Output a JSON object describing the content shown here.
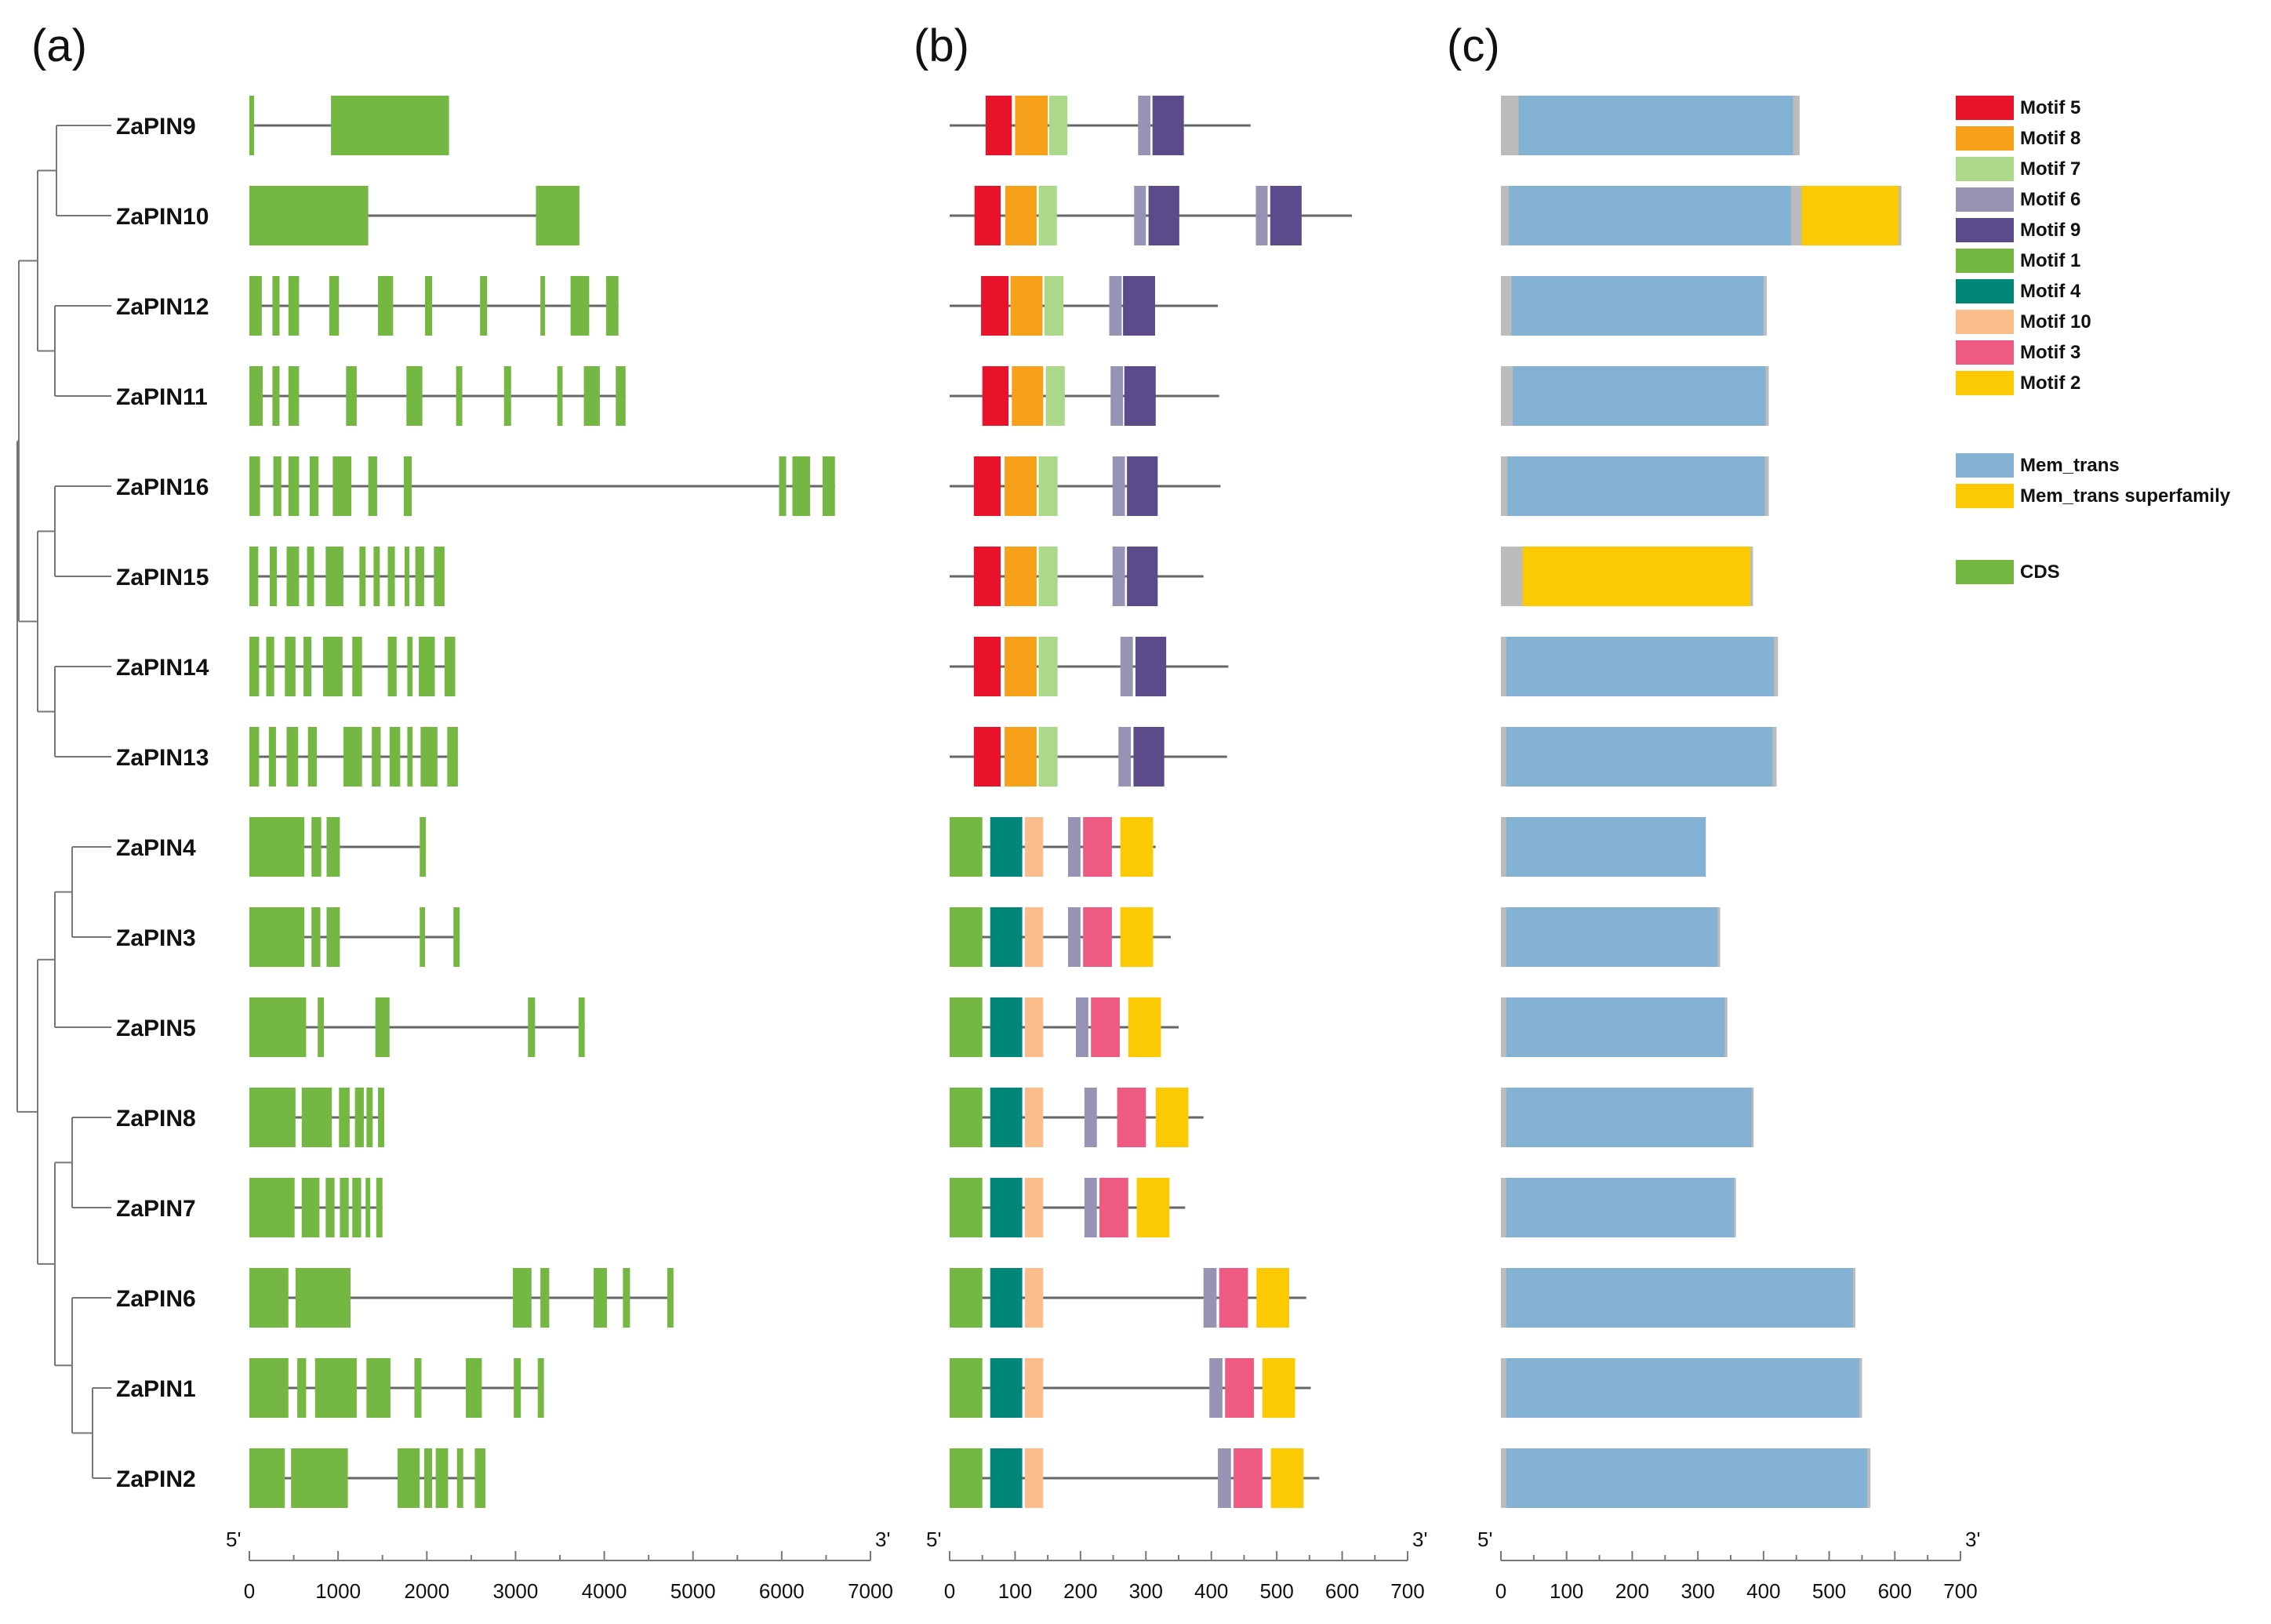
{
  "panels": {
    "a": "(a)",
    "b": "(b)",
    "c": "(c)"
  },
  "genes": [
    "ZaPIN9",
    "ZaPIN10",
    "ZaPIN12",
    "ZaPIN11",
    "ZaPIN16",
    "ZaPIN15",
    "ZaPIN14",
    "ZaPIN13",
    "ZaPIN4",
    "ZaPIN3",
    "ZaPIN5",
    "ZaPIN8",
    "ZaPIN7",
    "ZaPIN6",
    "ZaPIN1",
    "ZaPIN2"
  ],
  "axes": {
    "a": {
      "ticks": [
        "0",
        "1000",
        "2000",
        "3000",
        "4000",
        "5000",
        "6000",
        "7000"
      ],
      "max": 7000,
      "five": "5'",
      "three": "3'"
    },
    "b": {
      "ticks": [
        "0",
        "100",
        "200",
        "300",
        "400",
        "500",
        "600",
        "700"
      ],
      "max": 700,
      "five": "5'",
      "three": "3'"
    },
    "c": {
      "ticks": [
        "0",
        "100",
        "200",
        "300",
        "400",
        "500",
        "600",
        "700"
      ],
      "max": 700,
      "five": "5'",
      "three": "3'"
    }
  },
  "colors": {
    "motif5": "#e8132a",
    "motif8": "#f7a11a",
    "motif7": "#acd889",
    "motif6": "#9793b5",
    "motif9": "#5c4b8b",
    "motif1": "#74b843",
    "motif4": "#00877a",
    "motif10": "#fbbd8b",
    "motif3": "#ef5a82",
    "motif2": "#fcca03",
    "mem": "#84b2d5",
    "memsf": "#fcca03",
    "cds": "#74b843",
    "line": "#666666",
    "grey": "#bcbcbc"
  },
  "legend": [
    {
      "key": "motif5",
      "label": "Motif 5"
    },
    {
      "key": "motif8",
      "label": "Motif 8"
    },
    {
      "key": "motif7",
      "label": "Motif 7"
    },
    {
      "key": "motif6",
      "label": "Motif 6"
    },
    {
      "key": "motif9",
      "label": "Motif 9"
    },
    {
      "key": "motif1",
      "label": "Motif 1"
    },
    {
      "key": "motif4",
      "label": "Motif 4"
    },
    {
      "key": "motif10",
      "label": "Motif 10"
    },
    {
      "key": "motif3",
      "label": "Motif 3"
    },
    {
      "key": "motif2",
      "label": "Motif 2"
    },
    {
      "key": "mem",
      "label": "Mem_trans"
    },
    {
      "key": "memsf",
      "label": "Mem_trans superfamily"
    },
    {
      "key": "cds",
      "label": "CDS"
    }
  ],
  "gene_structure": [
    {
      "len": 2250,
      "exons": [
        [
          0,
          30
        ],
        [
          920,
          2250
        ]
      ]
    },
    {
      "len": 3720,
      "exons": [
        [
          0,
          1340
        ],
        [
          3230,
          3720
        ]
      ]
    },
    {
      "len": 4160,
      "exons": [
        [
          0,
          140
        ],
        [
          260,
          340
        ],
        [
          440,
          560
        ],
        [
          900,
          1010
        ],
        [
          1450,
          1620
        ],
        [
          1980,
          2060
        ],
        [
          2600,
          2680
        ],
        [
          3280,
          3330
        ],
        [
          3620,
          3830
        ],
        [
          4020,
          4160
        ]
      ]
    },
    {
      "len": 4240,
      "exons": [
        [
          0,
          150
        ],
        [
          260,
          340
        ],
        [
          440,
          560
        ],
        [
          1090,
          1210
        ],
        [
          1770,
          1950
        ],
        [
          2330,
          2400
        ],
        [
          2870,
          2950
        ],
        [
          3470,
          3530
        ],
        [
          3770,
          3950
        ],
        [
          4130,
          4240
        ]
      ]
    },
    {
      "len": 6600,
      "exons": [
        [
          0,
          120
        ],
        [
          270,
          360
        ],
        [
          440,
          560
        ],
        [
          680,
          780
        ],
        [
          940,
          1150
        ],
        [
          1340,
          1440
        ],
        [
          1740,
          1830
        ],
        [
          5970,
          6050
        ],
        [
          6120,
          6320
        ],
        [
          6460,
          6600
        ]
      ]
    },
    {
      "len": 2200,
      "exons": [
        [
          0,
          100
        ],
        [
          230,
          310
        ],
        [
          420,
          560
        ],
        [
          650,
          730
        ],
        [
          860,
          1060
        ],
        [
          1240,
          1310
        ],
        [
          1400,
          1470
        ],
        [
          1560,
          1640
        ],
        [
          1750,
          1790
        ],
        [
          1870,
          1970
        ],
        [
          2080,
          2200
        ]
      ]
    },
    {
      "len": 2320,
      "exons": [
        [
          0,
          110
        ],
        [
          190,
          280
        ],
        [
          400,
          520
        ],
        [
          610,
          700
        ],
        [
          830,
          1050
        ],
        [
          1160,
          1270
        ],
        [
          1560,
          1660
        ],
        [
          1780,
          1840
        ],
        [
          1910,
          2090
        ],
        [
          2200,
          2320
        ]
      ]
    },
    {
      "len": 2350,
      "exons": [
        [
          0,
          110
        ],
        [
          220,
          300
        ],
        [
          420,
          550
        ],
        [
          660,
          760
        ],
        [
          1060,
          1270
        ],
        [
          1380,
          1480
        ],
        [
          1580,
          1700
        ],
        [
          1780,
          1840
        ],
        [
          1930,
          2120
        ],
        [
          2230,
          2350
        ]
      ]
    },
    {
      "len": 1990,
      "exons": [
        [
          0,
          620
        ],
        [
          700,
          810
        ],
        [
          870,
          1020
        ],
        [
          1920,
          1990
        ]
      ]
    },
    {
      "len": 2370,
      "exons": [
        [
          0,
          620
        ],
        [
          700,
          800
        ],
        [
          870,
          1020
        ],
        [
          1920,
          1980
        ],
        [
          2300,
          2370
        ]
      ]
    },
    {
      "len": 3780,
      "exons": [
        [
          0,
          640
        ],
        [
          770,
          840
        ],
        [
          1420,
          1580
        ],
        [
          3140,
          3220
        ],
        [
          3710,
          3780
        ]
      ]
    },
    {
      "len": 1520,
      "exons": [
        [
          0,
          520
        ],
        [
          590,
          930
        ],
        [
          1010,
          1130
        ],
        [
          1190,
          1290
        ],
        [
          1320,
          1390
        ],
        [
          1450,
          1520
        ]
      ]
    },
    {
      "len": 1500,
      "exons": [
        [
          0,
          510
        ],
        [
          590,
          790
        ],
        [
          860,
          960
        ],
        [
          1020,
          1120
        ],
        [
          1160,
          1260
        ],
        [
          1310,
          1360
        ],
        [
          1430,
          1500
        ]
      ]
    },
    {
      "len": 4780,
      "exons": [
        [
          0,
          440
        ],
        [
          520,
          1140
        ],
        [
          2970,
          3180
        ],
        [
          3280,
          3380
        ],
        [
          3880,
          4030
        ],
        [
          4210,
          4290
        ],
        [
          4710,
          4780
        ]
      ]
    },
    {
      "len": 3320,
      "exons": [
        [
          0,
          440
        ],
        [
          540,
          640
        ],
        [
          740,
          1210
        ],
        [
          1320,
          1590
        ],
        [
          1860,
          1940
        ],
        [
          2440,
          2620
        ],
        [
          2980,
          3060
        ],
        [
          3250,
          3320
        ]
      ]
    },
    {
      "len": 2660,
      "exons": [
        [
          0,
          400
        ],
        [
          470,
          1110
        ],
        [
          1670,
          1920
        ],
        [
          1970,
          2060
        ],
        [
          2100,
          2240
        ],
        [
          2340,
          2410
        ],
        [
          2540,
          2660
        ]
      ]
    }
  ],
  "motifs": [
    {
      "len": 460,
      "items": [
        [
          "motif5",
          55,
          95
        ],
        [
          "motif8",
          100,
          150
        ],
        [
          "motif7",
          152,
          180
        ],
        [
          "motif6",
          288,
          307
        ],
        [
          "motif9",
          310,
          358
        ]
      ]
    },
    {
      "len": 615,
      "items": [
        [
          "motif5",
          38,
          78
        ],
        [
          "motif8",
          85,
          133
        ],
        [
          "motif7",
          136,
          164
        ],
        [
          "motif6",
          282,
          300
        ],
        [
          "motif9",
          304,
          351
        ],
        [
          "motif6",
          468,
          486
        ],
        [
          "motif9",
          490,
          538
        ]
      ]
    },
    {
      "len": 410,
      "items": [
        [
          "motif5",
          48,
          90
        ],
        [
          "motif8",
          93,
          142
        ],
        [
          "motif7",
          145,
          174
        ],
        [
          "motif6",
          244,
          263
        ],
        [
          "motif9",
          265,
          314
        ]
      ]
    },
    {
      "len": 412,
      "items": [
        [
          "motif5",
          50,
          90
        ],
        [
          "motif8",
          95,
          143
        ],
        [
          "motif7",
          147,
          176
        ],
        [
          "motif6",
          246,
          265
        ],
        [
          "motif9",
          267,
          315
        ]
      ]
    },
    {
      "len": 414,
      "items": [
        [
          "motif5",
          37,
          78
        ],
        [
          "motif8",
          84,
          133
        ],
        [
          "motif7",
          136,
          165
        ],
        [
          "motif6",
          249,
          268
        ],
        [
          "motif9",
          271,
          318
        ]
      ]
    },
    {
      "len": 388,
      "items": [
        [
          "motif5",
          37,
          78
        ],
        [
          "motif8",
          84,
          133
        ],
        [
          "motif7",
          136,
          165
        ],
        [
          "motif6",
          249,
          268
        ],
        [
          "motif9",
          271,
          318
        ]
      ]
    },
    {
      "len": 426,
      "items": [
        [
          "motif5",
          37,
          78
        ],
        [
          "motif8",
          84,
          133
        ],
        [
          "motif7",
          136,
          165
        ],
        [
          "motif6",
          261,
          280
        ],
        [
          "motif9",
          284,
          331
        ]
      ]
    },
    {
      "len": 424,
      "items": [
        [
          "motif5",
          37,
          78
        ],
        [
          "motif8",
          84,
          133
        ],
        [
          "motif7",
          136,
          165
        ],
        [
          "motif6",
          258,
          277
        ],
        [
          "motif9",
          281,
          328
        ]
      ]
    },
    {
      "len": 315,
      "items": [
        [
          "motif1",
          0,
          50
        ],
        [
          "motif4",
          62,
          111
        ],
        [
          "motif10",
          115,
          143
        ],
        [
          "motif6",
          181,
          200
        ],
        [
          "motif3",
          204,
          248
        ],
        [
          "motif2",
          261,
          311
        ]
      ]
    },
    {
      "len": 338,
      "items": [
        [
          "motif1",
          0,
          50
        ],
        [
          "motif4",
          62,
          111
        ],
        [
          "motif10",
          115,
          143
        ],
        [
          "motif6",
          181,
          200
        ],
        [
          "motif3",
          204,
          248
        ],
        [
          "motif2",
          261,
          311
        ]
      ]
    },
    {
      "len": 350,
      "items": [
        [
          "motif1",
          0,
          50
        ],
        [
          "motif4",
          62,
          111
        ],
        [
          "motif10",
          115,
          143
        ],
        [
          "motif6",
          193,
          212
        ],
        [
          "motif3",
          216,
          260
        ],
        [
          "motif2",
          273,
          323
        ]
      ]
    },
    {
      "len": 388,
      "items": [
        [
          "motif1",
          0,
          50
        ],
        [
          "motif4",
          62,
          111
        ],
        [
          "motif10",
          115,
          143
        ],
        [
          "motif6",
          206,
          225
        ],
        [
          "motif3",
          256,
          300
        ],
        [
          "motif2",
          315,
          365
        ]
      ]
    },
    {
      "len": 360,
      "items": [
        [
          "motif1",
          0,
          50
        ],
        [
          "motif4",
          62,
          111
        ],
        [
          "motif10",
          115,
          143
        ],
        [
          "motif6",
          206,
          225
        ],
        [
          "motif3",
          229,
          273
        ],
        [
          "motif2",
          286,
          336
        ]
      ]
    },
    {
      "len": 545,
      "items": [
        [
          "motif1",
          0,
          50
        ],
        [
          "motif4",
          62,
          111
        ],
        [
          "motif10",
          115,
          143
        ],
        [
          "motif6",
          388,
          408
        ],
        [
          "motif3",
          412,
          456
        ],
        [
          "motif2",
          469,
          519
        ]
      ]
    },
    {
      "len": 552,
      "items": [
        [
          "motif1",
          0,
          50
        ],
        [
          "motif4",
          62,
          111
        ],
        [
          "motif10",
          115,
          143
        ],
        [
          "motif6",
          397,
          417
        ],
        [
          "motif3",
          421,
          465
        ],
        [
          "motif2",
          478,
          528
        ]
      ]
    },
    {
      "len": 565,
      "items": [
        [
          "motif1",
          0,
          50
        ],
        [
          "motif4",
          62,
          111
        ],
        [
          "motif10",
          115,
          143
        ],
        [
          "motif6",
          410,
          430
        ],
        [
          "motif3",
          434,
          478
        ],
        [
          "motif2",
          491,
          541
        ]
      ]
    }
  ],
  "domains": [
    {
      "len": 455,
      "items": [
        [
          "mem",
          27,
          445
        ]
      ]
    },
    {
      "len": 610,
      "items": [
        [
          "mem",
          12,
          442
        ],
        [
          "memsf",
          458,
          606
        ]
      ]
    },
    {
      "len": 405,
      "items": [
        [
          "mem",
          16,
          400
        ]
      ]
    },
    {
      "len": 408,
      "items": [
        [
          "mem",
          18,
          403
        ]
      ]
    },
    {
      "len": 408,
      "items": [
        [
          "mem",
          10,
          402
        ]
      ]
    },
    {
      "len": 384,
      "items": [
        [
          "memsf",
          33,
          380
        ]
      ]
    },
    {
      "len": 422,
      "items": [
        [
          "mem",
          8,
          416
        ]
      ]
    },
    {
      "len": 420,
      "items": [
        [
          "mem",
          8,
          414
        ]
      ]
    },
    {
      "len": 312,
      "items": [
        [
          "mem",
          8,
          312
        ]
      ]
    },
    {
      "len": 334,
      "items": [
        [
          "mem",
          8,
          330
        ]
      ]
    },
    {
      "len": 345,
      "items": [
        [
          "mem",
          8,
          341
        ]
      ]
    },
    {
      "len": 385,
      "items": [
        [
          "mem",
          8,
          382
        ]
      ]
    },
    {
      "len": 358,
      "items": [
        [
          "mem",
          8,
          355
        ]
      ]
    },
    {
      "len": 540,
      "items": [
        [
          "mem",
          8,
          536
        ]
      ]
    },
    {
      "len": 550,
      "items": [
        [
          "mem",
          8,
          546
        ]
      ]
    },
    {
      "len": 563,
      "items": [
        [
          "mem",
          8,
          558
        ]
      ]
    }
  ]
}
